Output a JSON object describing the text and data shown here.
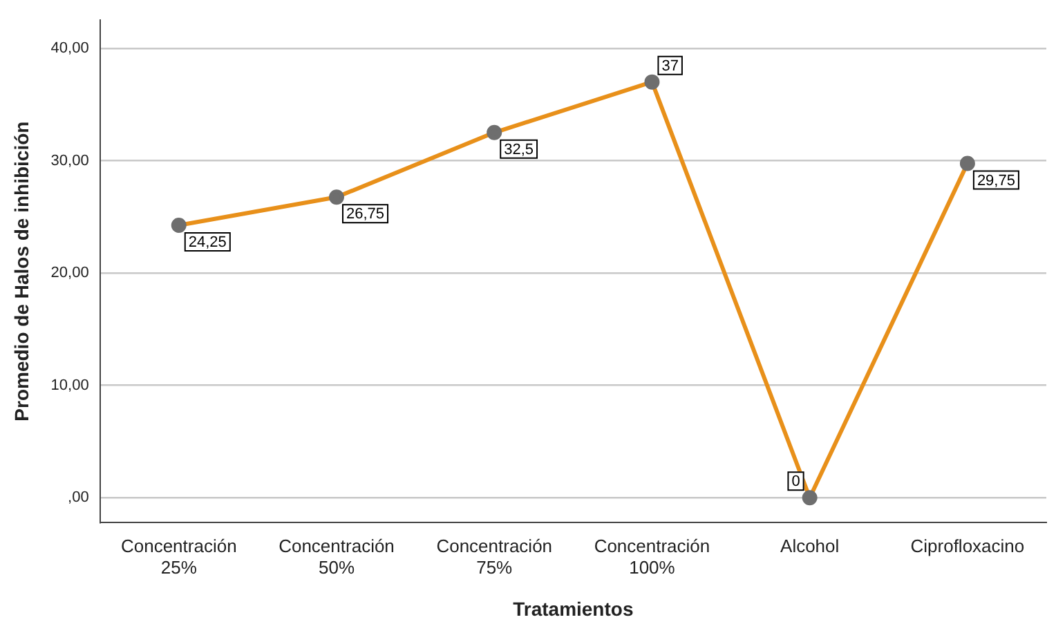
{
  "chart_data": {
    "type": "line",
    "xlabel": "Tratamientos",
    "ylabel": "Promedio de Halos de inhibición",
    "categories": [
      "Concentración 25%",
      "Concentración 50%",
      "Concentración 75%",
      "Concentración 100%",
      "Alcohol",
      "Ciprofloxacino"
    ],
    "series": [
      {
        "color": "#e8901a",
        "values": [
          24.25,
          26.75,
          32.5,
          37,
          0,
          29.75
        ],
        "value_labels": [
          "24,25",
          "26,75",
          "32,5",
          "37",
          "0",
          "29,75"
        ]
      }
    ],
    "ylim": [
      -2.2,
      42.5
    ],
    "yticks": [
      {
        "value": 0,
        "label": ",00"
      },
      {
        "value": 10,
        "label": "10,00"
      },
      {
        "value": 20,
        "label": "20,00"
      },
      {
        "value": 30,
        "label": "30,00"
      },
      {
        "value": 40,
        "label": "40,00"
      }
    ],
    "grid": "y",
    "marker": "circle",
    "line_style": "solid",
    "legend": false
  }
}
